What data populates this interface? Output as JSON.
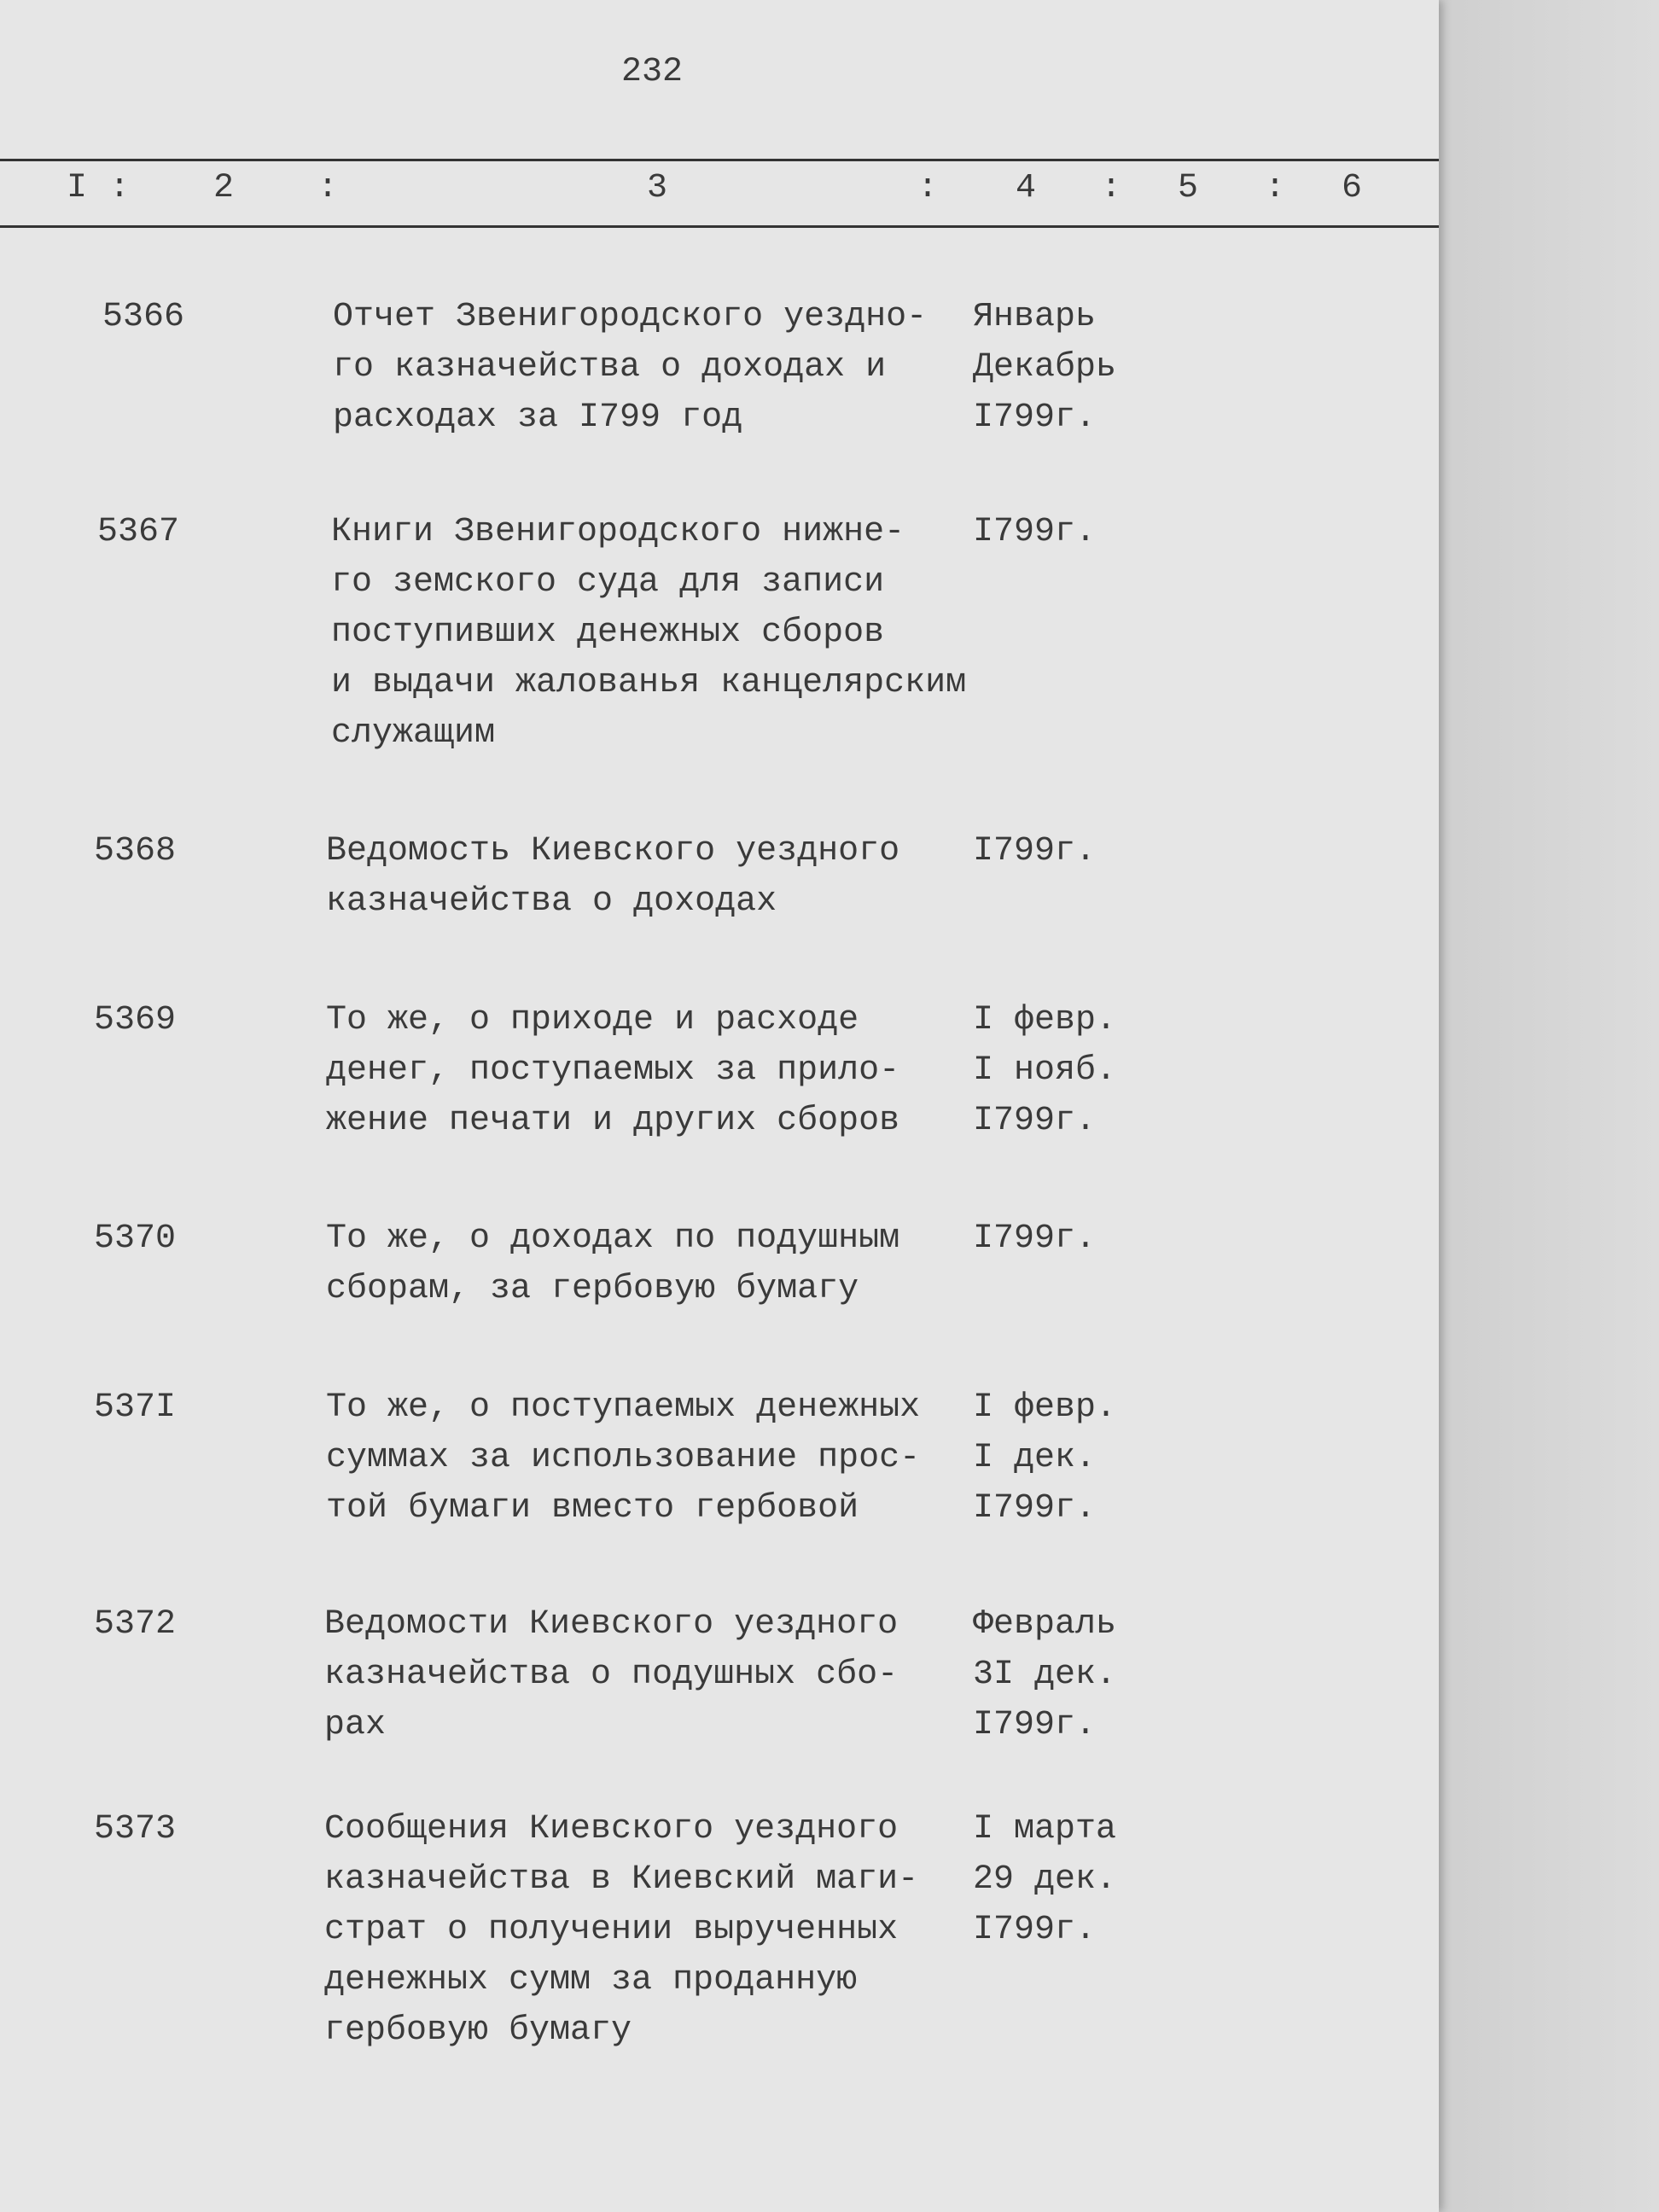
{
  "page_number": "232",
  "header_columns": [
    "I",
    "2",
    "3",
    "4",
    "5",
    "6"
  ],
  "header_separator": ":",
  "entries": [
    {
      "number": "5366",
      "description": [
        "Отчет Звенигородского уездно-",
        "го казначейства о доходах и",
        "расходах за I799 год"
      ],
      "dates": [
        "Январь",
        "Декабрь",
        "I799г."
      ]
    },
    {
      "number": "5367",
      "description": [
        "Книги Звенигородского нижне-",
        "го земского суда для записи",
        "поступивших денежных сборов",
        "и выдачи жалованья канцелярским",
        "служащим"
      ],
      "dates": [
        "I799г."
      ]
    },
    {
      "number": "5368",
      "description": [
        "Ведомость Киевского уездного",
        "казначейства о доходах"
      ],
      "dates": [
        "I799г."
      ]
    },
    {
      "number": "5369",
      "description": [
        "То же, о приходе и расходе",
        "денег, поступаемых за прило-",
        "жение печати и других сборов"
      ],
      "dates": [
        "I февр.",
        "I нояб.",
        "I799г."
      ]
    },
    {
      "number": "5370",
      "description": [
        "То же, о доходах по подушным",
        "сборам, за гербовую бумагу"
      ],
      "dates": [
        "I799г."
      ]
    },
    {
      "number": "537I",
      "description": [
        "То же, о поступаемых денежных",
        "суммах за использование прос-",
        "той бумаги вместо гербовой"
      ],
      "dates": [
        "I февр.",
        "I дек.",
        "I799г."
      ]
    },
    {
      "number": "5372",
      "description": [
        "Ведомости Киевского уездного",
        "казначейства о подушных сбо-",
        "рах"
      ],
      "dates": [
        "Февраль",
        "3I дек.",
        "I799г."
      ]
    },
    {
      "number": "5373",
      "description": [
        "Сообщения Киевского уездного",
        "казначейства в Киевский маги-",
        "страт о получении вырученных",
        "денежных сумм за проданную",
        "гербовую бумагу"
      ],
      "dates": [
        "I марта",
        "29 дек.",
        "I799г."
      ]
    }
  ]
}
